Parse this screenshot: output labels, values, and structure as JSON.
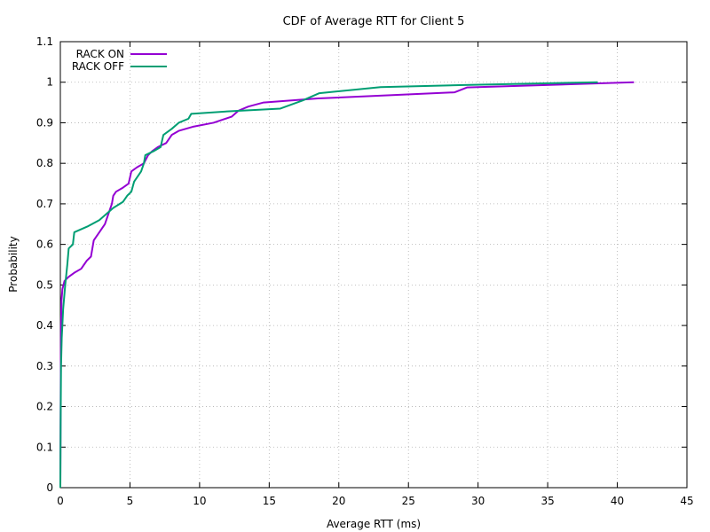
{
  "chart_data": {
    "type": "line",
    "title": "CDF of Average RTT for Client 5",
    "xlabel": "Average RTT (ms)",
    "ylabel": "Probability",
    "xlim": [
      0,
      45
    ],
    "ylim": [
      0,
      1.1
    ],
    "xticks": [
      0,
      5,
      10,
      15,
      20,
      25,
      30,
      35,
      40,
      45
    ],
    "yticks": [
      0,
      0.1,
      0.2,
      0.3,
      0.4,
      0.5,
      0.6,
      0.7,
      0.8,
      0.9,
      1,
      1.1
    ],
    "grid": true,
    "legend_position": "top-left",
    "series": [
      {
        "name": "RACK ON",
        "color": "#9400d3",
        "points": [
          [
            0.0,
            0.0
          ],
          [
            0.02,
            0.2
          ],
          [
            0.05,
            0.4
          ],
          [
            0.08,
            0.46
          ],
          [
            0.15,
            0.49
          ],
          [
            0.3,
            0.51
          ],
          [
            0.6,
            0.52
          ],
          [
            1.0,
            0.53
          ],
          [
            1.5,
            0.54
          ],
          [
            1.7,
            0.55
          ],
          [
            1.9,
            0.56
          ],
          [
            2.2,
            0.57
          ],
          [
            2.4,
            0.61
          ],
          [
            2.8,
            0.63
          ],
          [
            3.2,
            0.65
          ],
          [
            3.5,
            0.68
          ],
          [
            3.7,
            0.7
          ],
          [
            3.8,
            0.72
          ],
          [
            4.0,
            0.73
          ],
          [
            4.5,
            0.74
          ],
          [
            4.9,
            0.75
          ],
          [
            5.1,
            0.78
          ],
          [
            5.5,
            0.79
          ],
          [
            6.0,
            0.8
          ],
          [
            6.3,
            0.82
          ],
          [
            6.6,
            0.83
          ],
          [
            7.0,
            0.84
          ],
          [
            7.6,
            0.85
          ],
          [
            8.0,
            0.87
          ],
          [
            8.5,
            0.88
          ],
          [
            9.5,
            0.89
          ],
          [
            11.0,
            0.9
          ],
          [
            12.3,
            0.915
          ],
          [
            12.8,
            0.93
          ],
          [
            13.5,
            0.94
          ],
          [
            14.6,
            0.95
          ],
          [
            18.5,
            0.96
          ],
          [
            28.3,
            0.975
          ],
          [
            29.2,
            0.987
          ],
          [
            41.2,
            1.0
          ]
        ]
      },
      {
        "name": "RACK OFF",
        "color": "#009e73",
        "points": [
          [
            0.0,
            0.0
          ],
          [
            0.02,
            0.15
          ],
          [
            0.05,
            0.3
          ],
          [
            0.1,
            0.37
          ],
          [
            0.2,
            0.44
          ],
          [
            0.35,
            0.5
          ],
          [
            0.5,
            0.55
          ],
          [
            0.6,
            0.59
          ],
          [
            0.9,
            0.6
          ],
          [
            1.0,
            0.63
          ],
          [
            2.0,
            0.645
          ],
          [
            2.8,
            0.66
          ],
          [
            3.3,
            0.675
          ],
          [
            3.8,
            0.69
          ],
          [
            4.5,
            0.705
          ],
          [
            4.8,
            0.72
          ],
          [
            5.1,
            0.73
          ],
          [
            5.3,
            0.755
          ],
          [
            5.6,
            0.77
          ],
          [
            5.8,
            0.78
          ],
          [
            6.0,
            0.8
          ],
          [
            6.1,
            0.82
          ],
          [
            6.7,
            0.83
          ],
          [
            7.2,
            0.84
          ],
          [
            7.4,
            0.87
          ],
          [
            8.0,
            0.885
          ],
          [
            8.5,
            0.9
          ],
          [
            9.2,
            0.91
          ],
          [
            9.4,
            0.922
          ],
          [
            12.0,
            0.928
          ],
          [
            15.8,
            0.935
          ],
          [
            17.4,
            0.955
          ],
          [
            18.6,
            0.973
          ],
          [
            23.0,
            0.988
          ],
          [
            29.0,
            0.993
          ],
          [
            38.6,
            1.0
          ]
        ]
      }
    ]
  }
}
